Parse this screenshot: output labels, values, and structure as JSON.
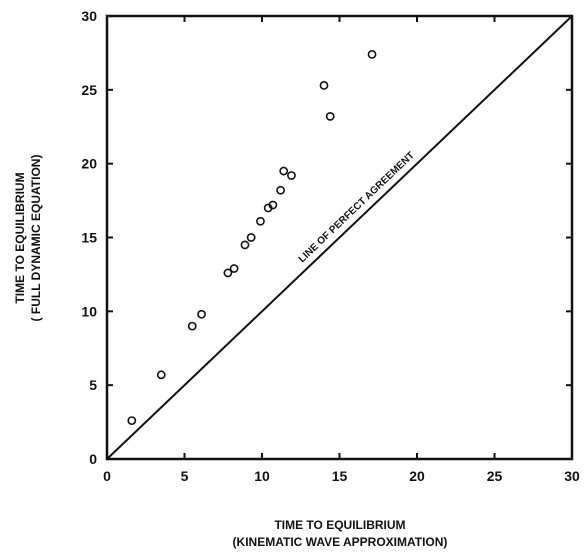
{
  "chart_data": {
    "type": "scatter",
    "xlabel": [
      "TIME TO EQUILIBRIUM",
      "(KINEMATIC WAVE APPROXIMATION)"
    ],
    "ylabel": [
      "TIME TO EQUILIBRIUM",
      "( FULL DYNAMIC EQUATION)"
    ],
    "xlim": [
      0,
      30
    ],
    "ylim": [
      0,
      30
    ],
    "xticks": [
      0,
      5,
      10,
      15,
      20,
      25,
      30
    ],
    "yticks": [
      0,
      5,
      10,
      15,
      20,
      25,
      30
    ],
    "grid": false,
    "reference_line": {
      "label": "LINE OF PERFECT AGREEMENT",
      "from": [
        0,
        0
      ],
      "to": [
        30,
        30
      ]
    },
    "series": [
      {
        "marker": "open-circle",
        "x": [
          1.6,
          3.5,
          5.5,
          6.1,
          7.8,
          8.2,
          8.9,
          9.3,
          9.9,
          10.4,
          10.7,
          11.2,
          11.4,
          11.9,
          14.0,
          14.4,
          17.1
        ],
        "y": [
          2.6,
          5.7,
          9.0,
          9.8,
          12.6,
          12.9,
          14.5,
          15.0,
          16.1,
          17.0,
          17.2,
          18.2,
          19.5,
          19.2,
          25.3,
          23.2,
          27.4
        ]
      }
    ]
  }
}
